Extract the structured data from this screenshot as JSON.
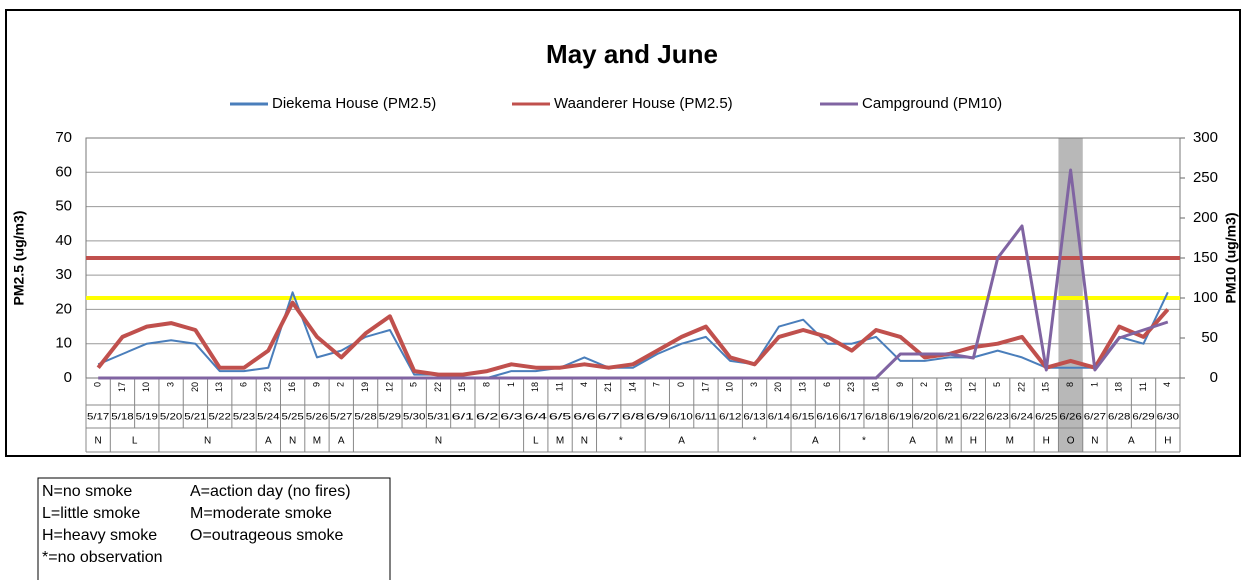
{
  "chart_data": {
    "type": "line",
    "title": "May and June",
    "y_label": "PM2.5 (ug/m3)",
    "y2_label": "PM10 (ug/m3)",
    "ylim": [
      0,
      70
    ],
    "yticks": [
      0,
      10,
      20,
      30,
      40,
      50,
      60,
      70
    ],
    "y2lim": [
      0,
      300
    ],
    "y2ticks": [
      0,
      50,
      100,
      150,
      200,
      250,
      300
    ],
    "grid": true,
    "legend": "top",
    "categories": [
      "5/17",
      "5/18",
      "5/19",
      "5/20",
      "5/21",
      "5/22",
      "5/23",
      "5/24",
      "5/25",
      "5/26",
      "5/27",
      "5/28",
      "5/29",
      "5/30",
      "5/31",
      "6/1",
      "6/2",
      "6/3",
      "6/4",
      "6/5",
      "6/6",
      "6/7",
      "6/8",
      "6/9",
      "6/10",
      "6/11",
      "6/12",
      "6/13",
      "6/14",
      "6/15",
      "6/16",
      "6/17",
      "6/18",
      "6/19",
      "6/20",
      "6/21",
      "6/22",
      "6/23",
      "6/24",
      "6/25",
      "6/26",
      "6/27",
      "6/28",
      "6/29",
      "6/30"
    ],
    "hour_labels": [
      0,
      17,
      10,
      3,
      20,
      13,
      6,
      23,
      16,
      9,
      2,
      19,
      12,
      5,
      22,
      15,
      8,
      1,
      18,
      11,
      4,
      21,
      14,
      7,
      0,
      17,
      10,
      3,
      20,
      13,
      6,
      23,
      16,
      9,
      2,
      19,
      12,
      5,
      22,
      15,
      8,
      1,
      18,
      11,
      4
    ],
    "series": [
      {
        "name": "Diekema House (PM2.5)",
        "color": "#4a7ebb",
        "width": 2,
        "values": [
          4,
          7,
          10,
          11,
          10,
          2,
          2,
          3,
          25,
          6,
          8,
          12,
          14,
          1,
          1,
          0,
          0,
          2,
          2,
          3,
          6,
          3,
          3,
          7,
          10,
          12,
          5,
          4,
          15,
          17,
          10,
          10,
          12,
          5,
          5,
          6,
          6,
          8,
          6,
          3,
          3,
          3,
          12,
          10,
          25
        ]
      },
      {
        "name": "Waanderer House (PM2.5)",
        "color": "#c0504d",
        "width": 4,
        "values": [
          3,
          12,
          15,
          16,
          14,
          3,
          3,
          8,
          22,
          12,
          6,
          13,
          18,
          2,
          1,
          1,
          2,
          4,
          3,
          3,
          4,
          3,
          4,
          8,
          12,
          15,
          6,
          4,
          12,
          14,
          12,
          8,
          14,
          12,
          6,
          7,
          9,
          10,
          12,
          3,
          5,
          3,
          15,
          12,
          20
        ]
      },
      {
        "name": "Campground (PM10)",
        "color": "#8064a2",
        "width": 3,
        "axis": "y2",
        "values": [
          0,
          0,
          0,
          0,
          0,
          0,
          0,
          0,
          0,
          0,
          0,
          0,
          0,
          0,
          0,
          0,
          0,
          0,
          0,
          0,
          0,
          0,
          0,
          0,
          0,
          0,
          0,
          0,
          0,
          0,
          0,
          0,
          0,
          30,
          30,
          30,
          25,
          150,
          190,
          10,
          260,
          10,
          50,
          60,
          70
        ]
      }
    ],
    "hlines": [
      {
        "value": 35,
        "axis": "y",
        "color": "#c0504d"
      },
      {
        "value": 100,
        "axis": "y2",
        "color": "#ffff00"
      }
    ],
    "smoke": [
      {
        "code": "N",
        "days": 1
      },
      {
        "code": "L",
        "days": 2
      },
      {
        "code": "N",
        "days": 4
      },
      {
        "code": "A",
        "days": 1
      },
      {
        "code": "N",
        "days": 1
      },
      {
        "code": "M",
        "days": 1
      },
      {
        "code": "A",
        "days": 1
      },
      {
        "code": "N",
        "days": 7
      },
      {
        "code": "L",
        "days": 1
      },
      {
        "code": "M",
        "days": 1
      },
      {
        "code": "N",
        "days": 1
      },
      {
        "code": "*",
        "days": 2
      },
      {
        "code": "A",
        "days": 3
      },
      {
        "code": "*",
        "days": 3
      },
      {
        "code": "A",
        "days": 2
      },
      {
        "code": "*",
        "days": 2
      },
      {
        "code": "A",
        "days": 2
      },
      {
        "code": "M",
        "days": 1
      },
      {
        "code": "H",
        "days": 1
      },
      {
        "code": "M",
        "days": 2
      },
      {
        "code": "H",
        "days": 1
      },
      {
        "code": "O",
        "days": 1,
        "shade": true
      },
      {
        "code": "N",
        "days": 1
      },
      {
        "code": "A",
        "days": 2
      },
      {
        "code": "H",
        "days": 1
      }
    ]
  },
  "key": [
    "N=no smoke",
    "A=action day (no fires)",
    "L=little smoke",
    "M=moderate smoke",
    "H=heavy smoke",
    "O=outrageous smoke",
    "*=no observation"
  ]
}
